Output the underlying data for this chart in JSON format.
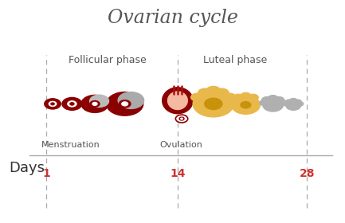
{
  "title": "Ovarian cycle",
  "title_fontsize": 17,
  "title_color": "#555555",
  "background_color": "#ffffff",
  "follicular_phase_label": "Follicular phase",
  "luteal_phase_label": "Luteal phase",
  "menstruation_label": "Menstruation",
  "ovulation_label": "Ovulation",
  "days_label": "Days",
  "day_marker_color": "#cc3333",
  "timeline_color": "#aaaaaa",
  "dashed_line_color": "#aaaaaa",
  "phase_label_color": "#555555",
  "label_fontsize": 8,
  "days_fontsize": 13,
  "days_number_fontsize": 10,
  "dark_red": "#8B0000",
  "yellow_color": "#e8b84b",
  "yellow_inner": "#c8930a",
  "gray_blob": "#b0b0b0"
}
